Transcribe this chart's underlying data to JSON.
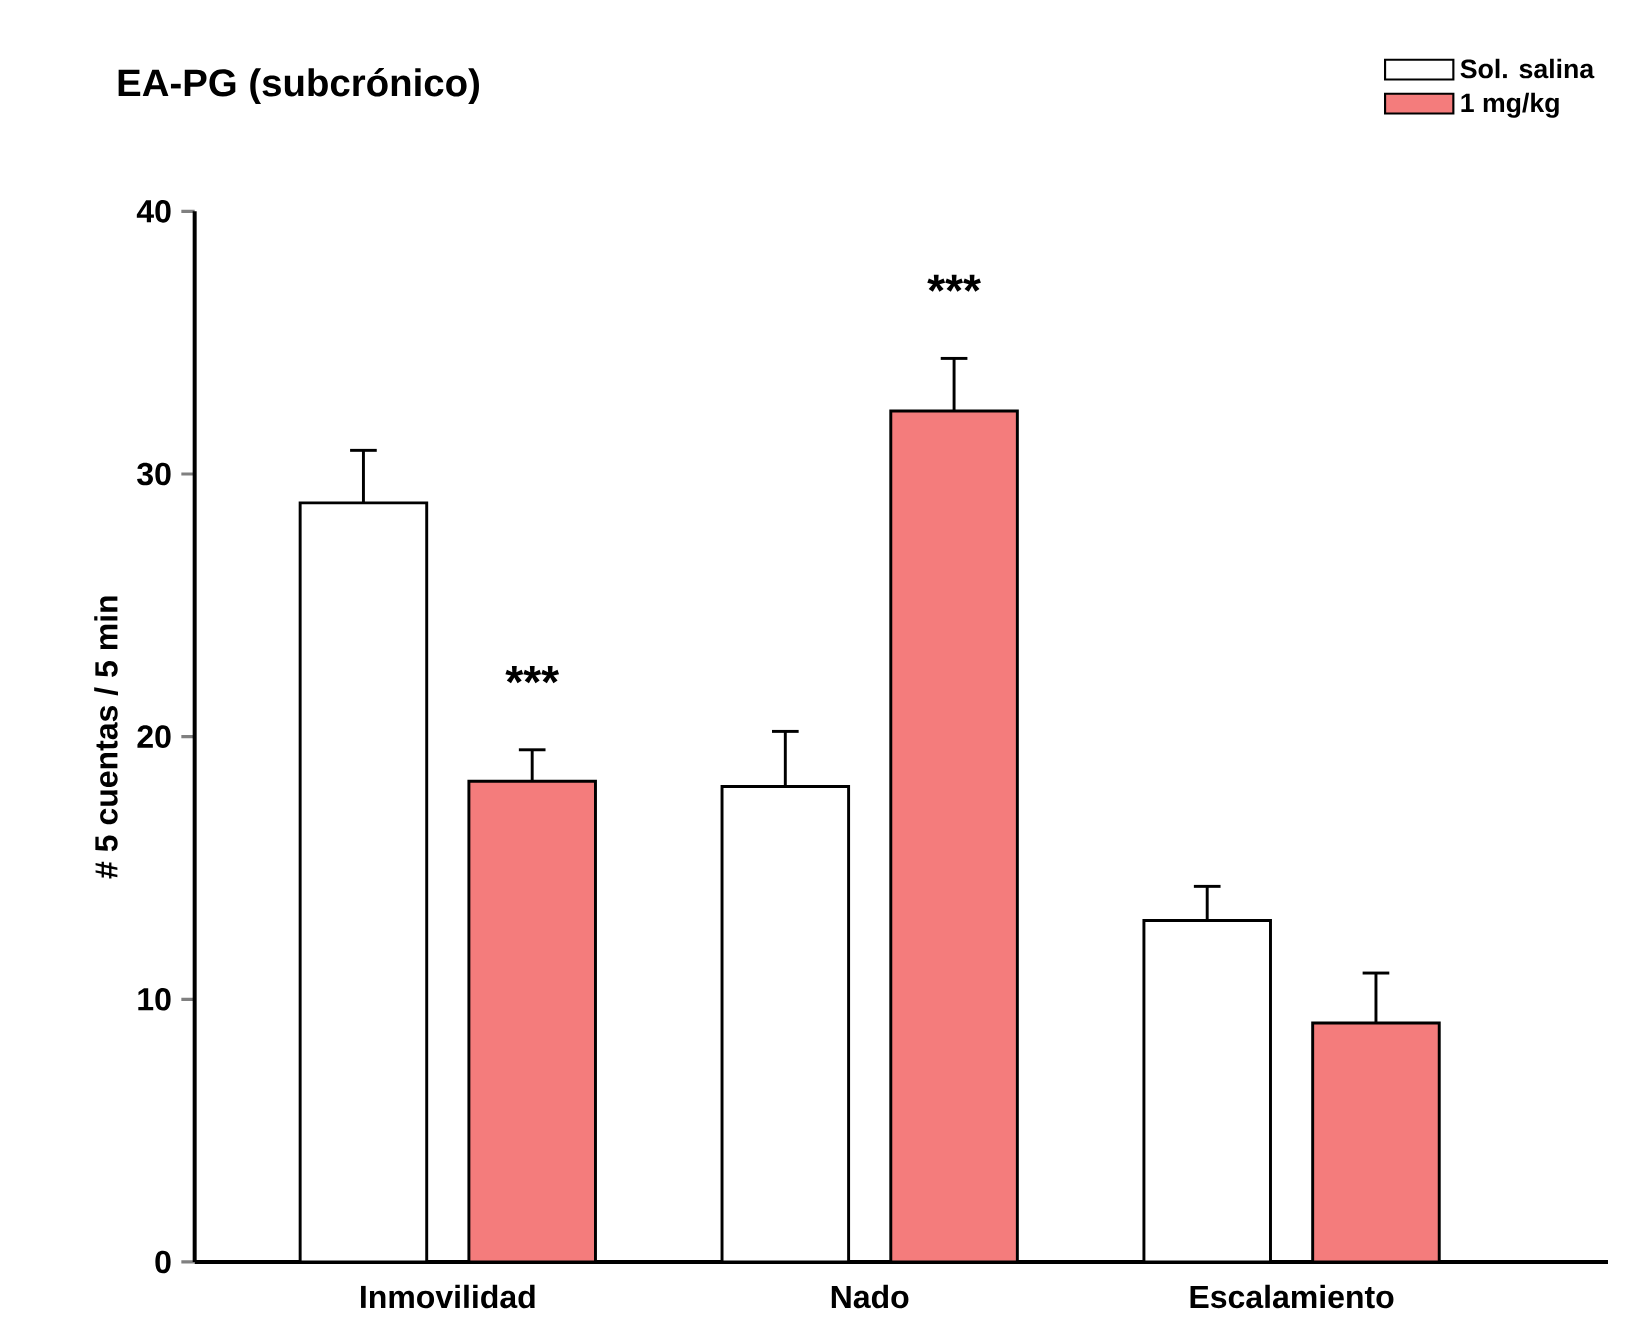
{
  "chart_data": {
    "type": "bar",
    "title": "EA-PG (subcrónico)",
    "ylabel": "# 5 cuentas / 5 min",
    "categories": [
      "Inmovilidad",
      "Nado",
      "Escalamiento"
    ],
    "series": [
      {
        "name": "Sol. salina",
        "color": "#ffffff",
        "values": [
          28.9,
          18.1,
          13.0
        ],
        "errors": [
          2.0,
          2.1,
          1.3
        ]
      },
      {
        "name": "1 mg/kg",
        "color": "#f47c7c",
        "values": [
          18.3,
          32.4,
          9.1
        ],
        "errors": [
          1.2,
          2.0,
          1.9
        ]
      }
    ],
    "ylim": [
      0,
      40
    ],
    "yticks": [
      0,
      10,
      20,
      30,
      40
    ],
    "grid": false,
    "legend": "top right",
    "annotations": [
      "***",
      "***"
    ]
  }
}
